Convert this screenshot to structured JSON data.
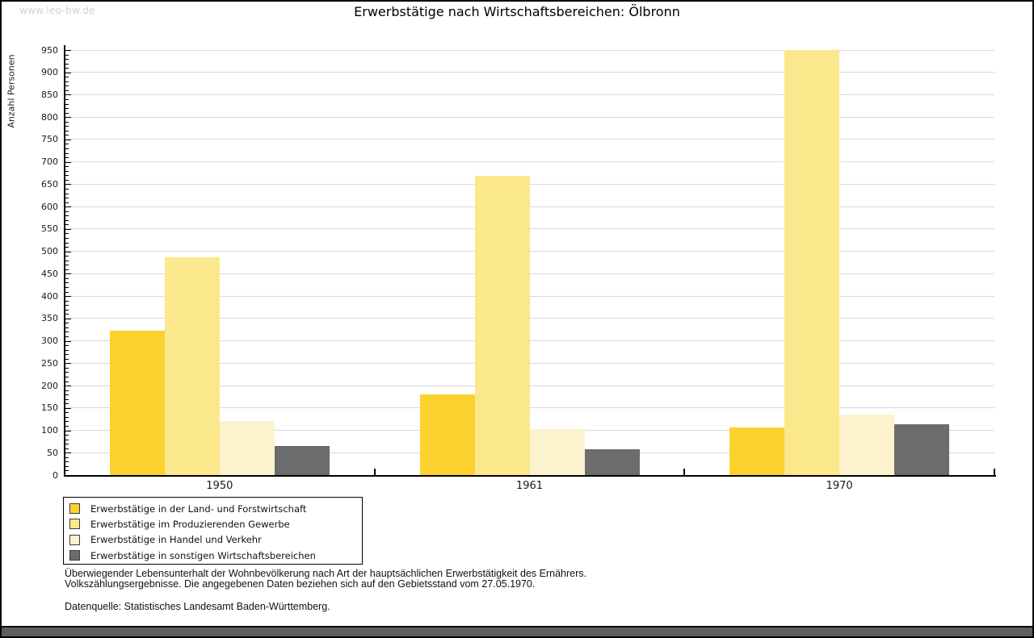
{
  "page": {
    "watermark": "www.leo-bw.de",
    "footnotes": {
      "line1": "Überwiegender Lebensunterhalt der Wohnbevölkerung nach Art der hauptsächlichen Erwerbstätigkeit des Ernährers.",
      "line2": "Volkszählungsergebnisse. Die angegebenen Daten beziehen sich auf den Gebietsstand vom 27.05.1970.",
      "datasource": "Datenquelle: Statistisches Landesamt Baden-Württemberg."
    }
  },
  "chart_data": {
    "type": "bar",
    "title": "Erwerbstätige nach Wirtschaftsbereichen: Ölbronn",
    "ylabel": "Anzahl Personen",
    "xlabel": "",
    "categories": [
      "1950",
      "1961",
      "1970"
    ],
    "series": [
      {
        "name": "Erwerbstätige in der Land- und Forstwirtschaft",
        "color": "#FBD22D",
        "values": [
          323,
          180,
          107
        ]
      },
      {
        "name": "Erwerbstätige im Produzierenden Gewerbe",
        "color": "#FBE78C",
        "values": [
          487,
          668,
          950
        ]
      },
      {
        "name": "Erwerbstätige in Handel und Verkehr",
        "color": "#FCF3CE",
        "values": [
          120,
          102,
          136
        ]
      },
      {
        "name": "Erwerbstätige in sonstigen Wirtschaftsbereichen",
        "color": "#6C6C6C",
        "values": [
          65,
          58,
          113
        ]
      }
    ],
    "ylim": [
      0,
      950
    ],
    "ytick_step": 50,
    "yminor_step": 10,
    "grid": true,
    "legend_position": "bottom-left",
    "colors": {
      "grid": "#D9D9D9",
      "axis": "#000000"
    }
  }
}
